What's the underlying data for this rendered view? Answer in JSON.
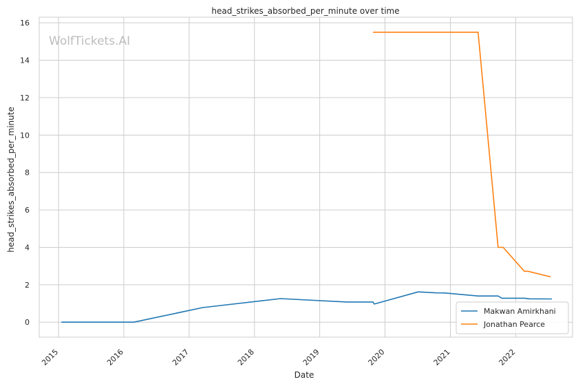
{
  "chart_data": {
    "type": "line",
    "title": "head_strikes_absorbed_per_minute over time",
    "xlabel": "Date",
    "ylabel": "head_strikes_absorbed_per_minute",
    "watermark": "WolfTickets.AI",
    "x_ticks": [
      "2015",
      "2016",
      "2017",
      "2018",
      "2019",
      "2020",
      "2021",
      "2022"
    ],
    "y_ticks": [
      "0",
      "2",
      "4",
      "6",
      "8",
      "10",
      "12",
      "14",
      "16"
    ],
    "xlim": [
      "2014-09-15",
      "2022-11-15"
    ],
    "ylim": [
      -0.8,
      16.3
    ],
    "grid": true,
    "legend_position": "lower-right",
    "series": [
      {
        "name": "Makwan Amirkhani",
        "color": "#1f77b4",
        "points": [
          [
            "2015-01-17",
            0.0
          ],
          [
            "2016-02-27",
            0.0
          ],
          [
            "2017-03-18",
            0.78
          ],
          [
            "2018-05-27",
            1.26
          ],
          [
            "2019-06-01",
            1.08
          ],
          [
            "2019-10-26",
            1.08
          ],
          [
            "2019-11-02",
            0.97
          ],
          [
            "2020-07-05",
            1.62
          ],
          [
            "2020-10-10",
            1.57
          ],
          [
            "2020-12-01",
            1.56
          ],
          [
            "2021-06-05",
            1.4
          ],
          [
            "2021-09-25",
            1.4
          ],
          [
            "2021-10-16",
            1.28
          ],
          [
            "2022-02-20",
            1.28
          ],
          [
            "2022-03-19",
            1.25
          ],
          [
            "2022-07-23",
            1.24
          ]
        ]
      },
      {
        "name": "Jonathan Pearce",
        "color": "#ff7f0e",
        "points": [
          [
            "2019-10-26",
            15.5
          ],
          [
            "2021-06-05",
            15.5
          ],
          [
            "2021-09-25",
            4.0
          ],
          [
            "2021-10-23",
            4.0
          ],
          [
            "2022-02-19",
            2.72
          ],
          [
            "2022-03-12",
            2.72
          ],
          [
            "2022-07-16",
            2.42
          ]
        ]
      }
    ]
  }
}
